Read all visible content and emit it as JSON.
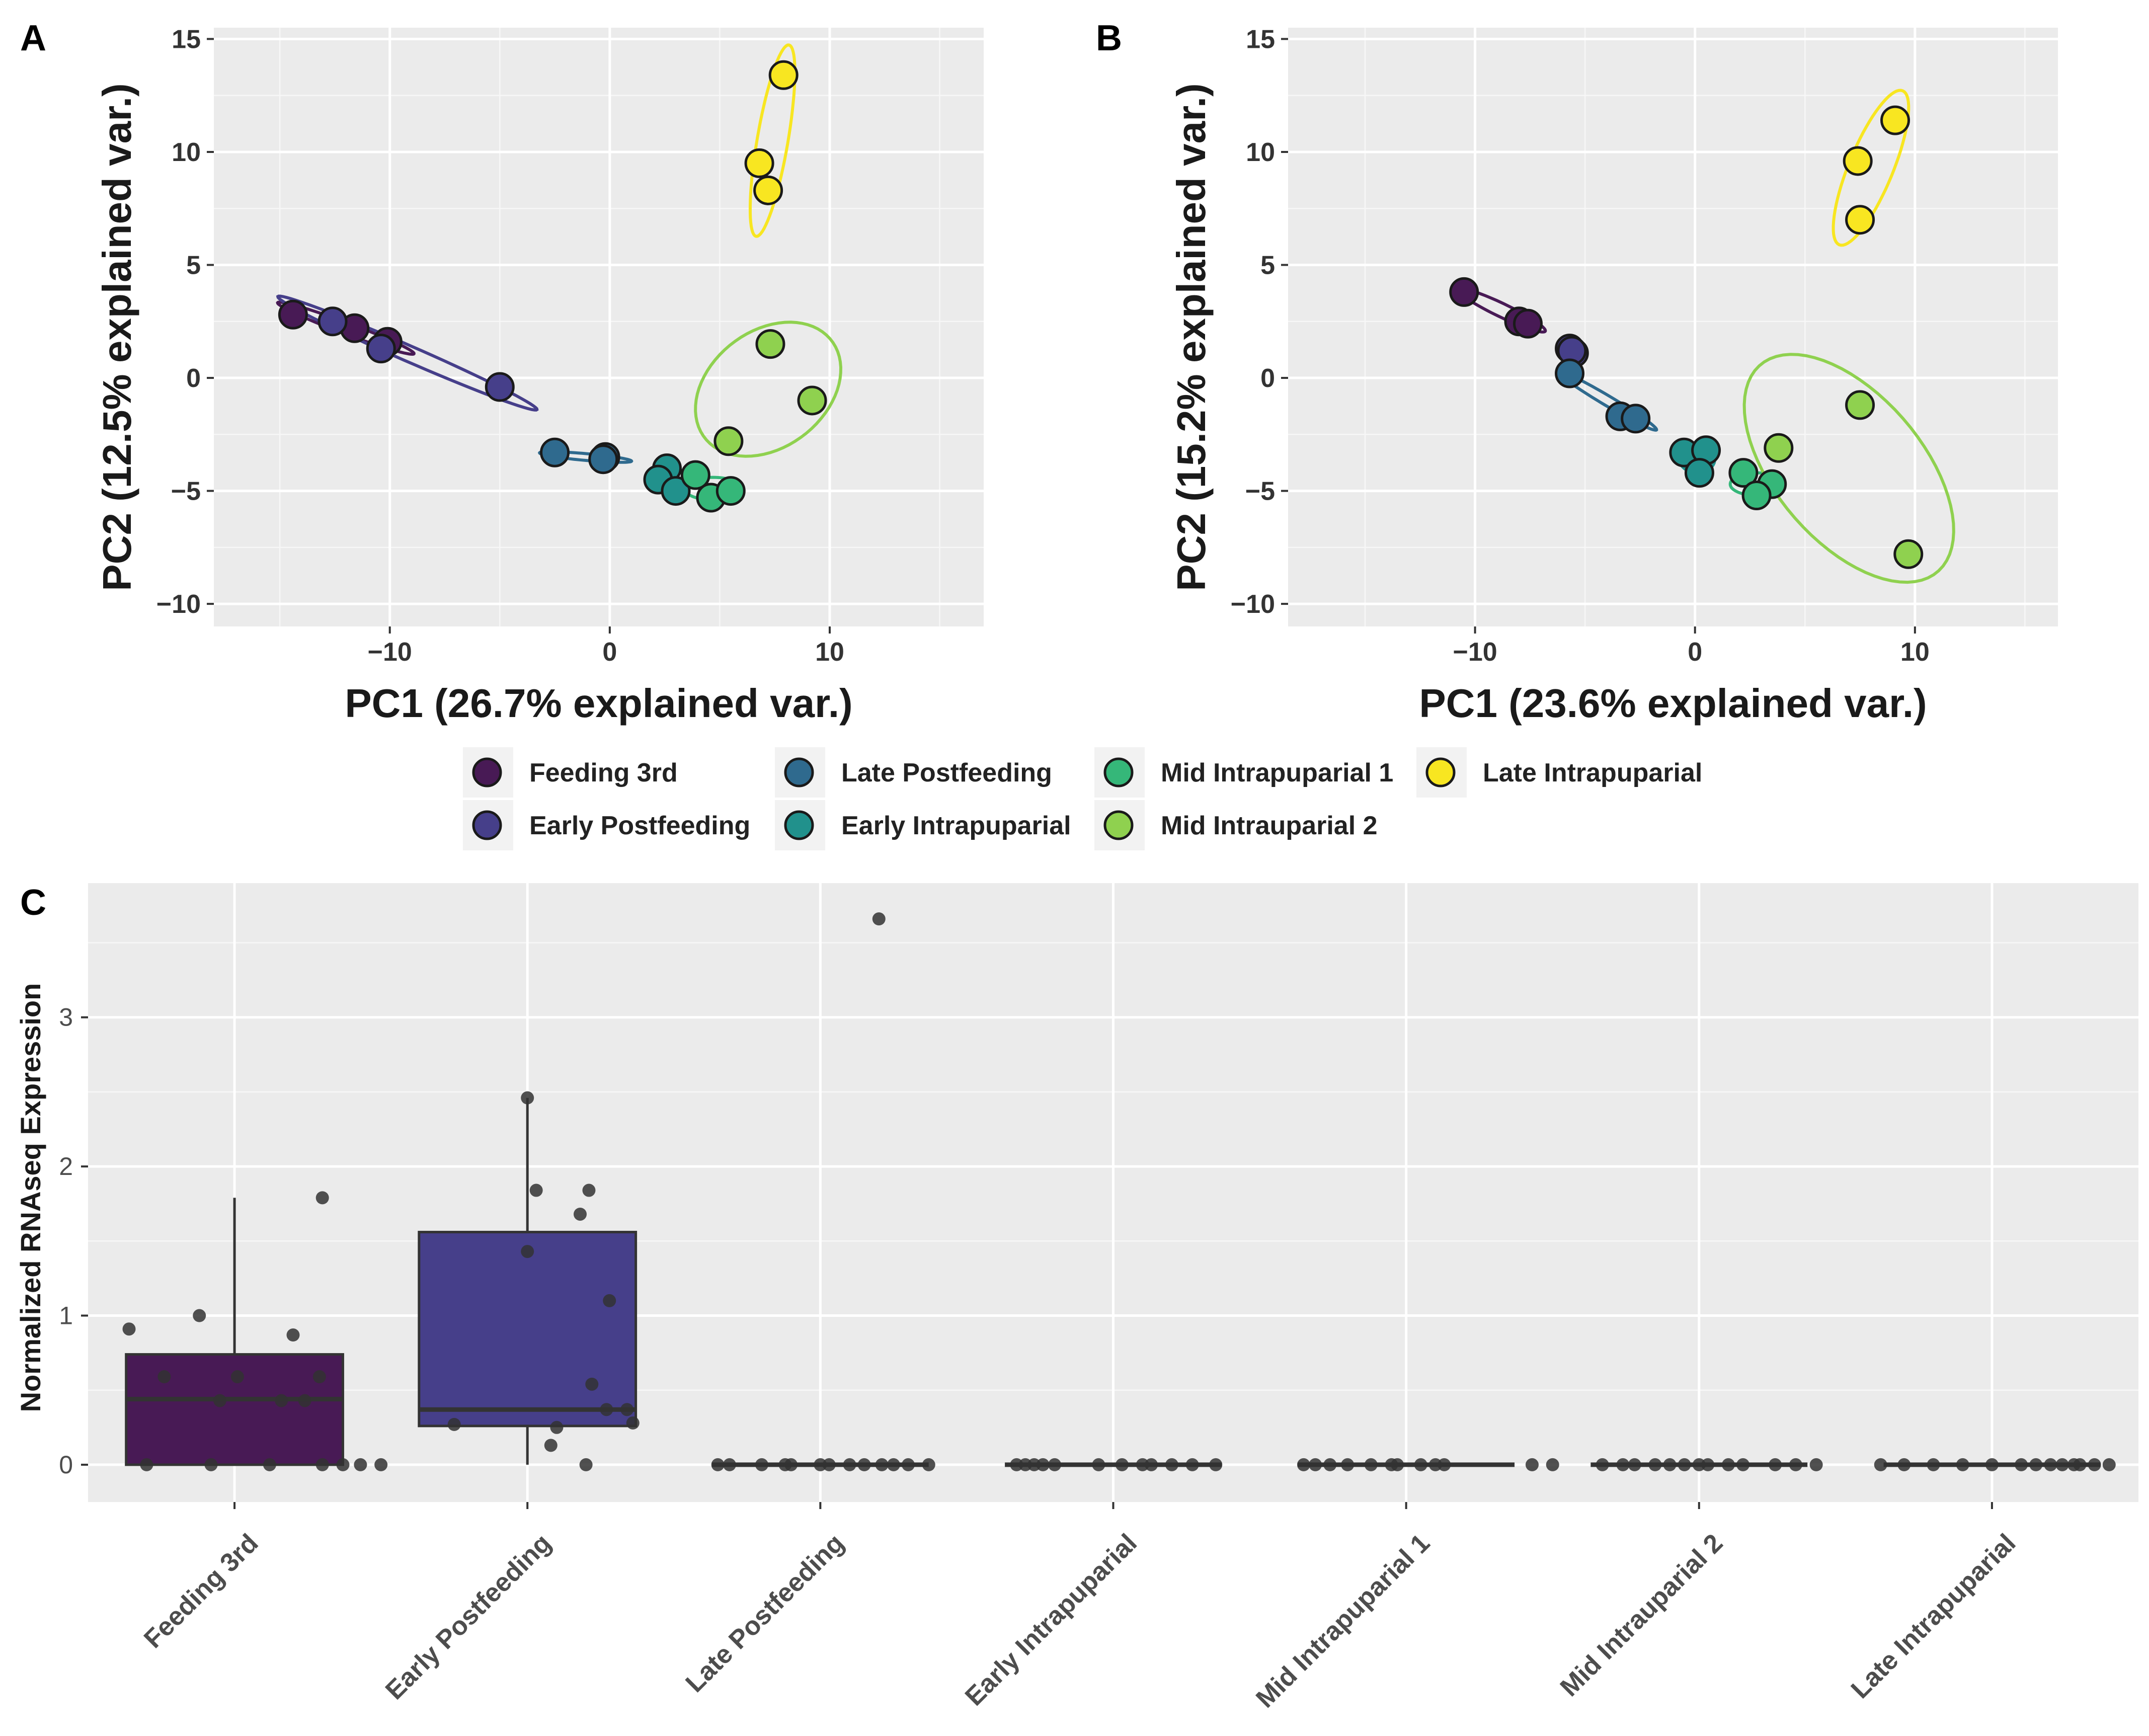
{
  "panels": {
    "a": "A",
    "b": "B",
    "c": "C"
  },
  "stage_colors": {
    "Feeding 3rd": "#481a55",
    "Early Postfeeding": "#463f8a",
    "Late Postfeeding": "#2f6a8e",
    "Early Intrapuparial": "#21918c",
    "Mid Intrapuparial 1": "#35b779",
    "Mid Intrauparial 2": "#8fd14f",
    "Late Intrapuparial": "#f8e621"
  },
  "legend": {
    "items": [
      "Feeding 3rd",
      "Early Postfeeding",
      "Late Postfeeding",
      "Early Intrapuparial",
      "Mid Intrapuparial 1",
      "Mid Intrauparial 2",
      "Late Intrapuparial"
    ]
  },
  "chart_data": [
    {
      "id": "A",
      "type": "scatter",
      "xlabel": "PC1 (26.7% explained var.)",
      "ylabel": "PC2 (12.5% explained var.)",
      "xlim": [
        -18,
        17
      ],
      "ylim": [
        -11,
        15.5
      ],
      "xticks": [
        -10,
        0,
        10
      ],
      "yticks": [
        -10,
        -5,
        0,
        5,
        10,
        15
      ],
      "xtick_labels": [
        "−10",
        "0",
        "10"
      ],
      "ytick_labels": [
        "−10",
        "−5",
        "0",
        "5",
        "10",
        "15"
      ],
      "points": [
        {
          "x": -14.4,
          "y": 2.8,
          "group": "Feeding 3rd"
        },
        {
          "x": -11.6,
          "y": 2.2,
          "group": "Feeding 3rd"
        },
        {
          "x": -10.1,
          "y": 1.6,
          "group": "Feeding 3rd"
        },
        {
          "x": -12.6,
          "y": 2.5,
          "group": "Early Postfeeding"
        },
        {
          "x": -10.4,
          "y": 1.3,
          "group": "Early Postfeeding"
        },
        {
          "x": -5.0,
          "y": -0.4,
          "group": "Early Postfeeding"
        },
        {
          "x": -2.5,
          "y": -3.3,
          "group": "Late Postfeeding"
        },
        {
          "x": -0.2,
          "y": -3.5,
          "group": "Late Postfeeding"
        },
        {
          "x": -0.3,
          "y": -3.6,
          "group": "Late Postfeeding"
        },
        {
          "x": 2.6,
          "y": -4.0,
          "group": "Early Intrapuparial"
        },
        {
          "x": 2.2,
          "y": -4.5,
          "group": "Early Intrapuparial"
        },
        {
          "x": 3.0,
          "y": -5.0,
          "group": "Early Intrapuparial"
        },
        {
          "x": 3.9,
          "y": -4.3,
          "group": "Mid Intrapuparial 1"
        },
        {
          "x": 4.6,
          "y": -5.3,
          "group": "Mid Intrapuparial 1"
        },
        {
          "x": 5.5,
          "y": -5.0,
          "group": "Mid Intrapuparial 1"
        },
        {
          "x": 7.3,
          "y": 1.5,
          "group": "Mid Intrauparial 2"
        },
        {
          "x": 9.2,
          "y": -1.0,
          "group": "Mid Intrauparial 2"
        },
        {
          "x": 5.4,
          "y": -2.8,
          "group": "Mid Intrauparial 2"
        },
        {
          "x": 7.9,
          "y": 13.4,
          "group": "Late Intrapuparial"
        },
        {
          "x": 6.8,
          "y": 9.5,
          "group": "Late Intrapuparial"
        },
        {
          "x": 7.2,
          "y": 8.3,
          "group": "Late Intrapuparial"
        }
      ],
      "ellipses": [
        {
          "group": "Feeding 3rd",
          "cx": -12.0,
          "cy": 2.2,
          "rx": 3.3,
          "ry": 0.25,
          "angle_deg": -20
        },
        {
          "group": "Early Postfeeding",
          "cx": -9.2,
          "cy": 1.1,
          "rx": 6.4,
          "ry": 0.35,
          "angle_deg": -23
        },
        {
          "group": "Late Postfeeding",
          "cx": -1.1,
          "cy": -3.5,
          "rx": 2.1,
          "ry": 0.15,
          "angle_deg": -5
        },
        {
          "group": "Early Intrapuparial",
          "cx": 2.6,
          "cy": -4.5,
          "rx": 0.9,
          "ry": 0.6,
          "angle_deg": 0
        },
        {
          "group": "Mid Intrapuparial 1",
          "cx": 4.7,
          "cy": -4.9,
          "rx": 1.3,
          "ry": 0.5,
          "angle_deg": 0
        },
        {
          "group": "Mid Intrauparial 2",
          "cx": 7.2,
          "cy": -0.5,
          "rx": 3.6,
          "ry": 2.6,
          "angle_deg": 35
        },
        {
          "group": "Late Intrapuparial",
          "cx": 7.4,
          "cy": 10.5,
          "rx": 4.3,
          "ry": 0.7,
          "angle_deg": 80
        }
      ]
    },
    {
      "id": "B",
      "type": "scatter",
      "xlabel": "PC1 (23.6% explained var.)",
      "ylabel": "PC2 (15.2% explained var.)",
      "xlim": [
        -18.5,
        16.5
      ],
      "ylim": [
        -11,
        15.5
      ],
      "xticks": [
        -10,
        0,
        10
      ],
      "yticks": [
        -10,
        -5,
        0,
        5,
        10,
        15
      ],
      "xtick_labels": [
        "−10",
        "0",
        "10"
      ],
      "ytick_labels": [
        "−10",
        "−5",
        "0",
        "5",
        "10",
        "15"
      ],
      "points": [
        {
          "x": -10.5,
          "y": 3.8,
          "group": "Feeding 3rd"
        },
        {
          "x": -8.0,
          "y": 2.5,
          "group": "Feeding 3rd"
        },
        {
          "x": -7.6,
          "y": 2.4,
          "group": "Feeding 3rd"
        },
        {
          "x": -5.7,
          "y": 1.3,
          "group": "Early Postfeeding"
        },
        {
          "x": -5.5,
          "y": 1.1,
          "group": "Early Postfeeding"
        },
        {
          "x": -5.6,
          "y": 1.2,
          "group": "Early Postfeeding"
        },
        {
          "x": -5.7,
          "y": 0.2,
          "group": "Late Postfeeding"
        },
        {
          "x": -3.4,
          "y": -1.7,
          "group": "Late Postfeeding"
        },
        {
          "x": -2.7,
          "y": -1.8,
          "group": "Late Postfeeding"
        },
        {
          "x": -0.5,
          "y": -3.3,
          "group": "Early Intrapuparial"
        },
        {
          "x": 0.5,
          "y": -3.2,
          "group": "Early Intrapuparial"
        },
        {
          "x": 0.2,
          "y": -4.2,
          "group": "Early Intrapuparial"
        },
        {
          "x": 2.2,
          "y": -4.2,
          "group": "Mid Intrapuparial 1"
        },
        {
          "x": 3.5,
          "y": -4.7,
          "group": "Mid Intrapuparial 1"
        },
        {
          "x": 2.8,
          "y": -5.2,
          "group": "Mid Intrapuparial 1"
        },
        {
          "x": 7.5,
          "y": -1.2,
          "group": "Mid Intrauparial 2"
        },
        {
          "x": 3.8,
          "y": -3.1,
          "group": "Mid Intrauparial 2"
        },
        {
          "x": 9.7,
          "y": -7.8,
          "group": "Mid Intrauparial 2"
        },
        {
          "x": 9.1,
          "y": 11.4,
          "group": "Late Intrapuparial"
        },
        {
          "x": 7.4,
          "y": 9.6,
          "group": "Late Intrapuparial"
        },
        {
          "x": 7.5,
          "y": 7.0,
          "group": "Late Intrapuparial"
        }
      ],
      "ellipses": [
        {
          "group": "Feeding 3rd",
          "cx": -8.8,
          "cy": 3.0,
          "rx": 2.2,
          "ry": 0.3,
          "angle_deg": -25
        },
        {
          "group": "Early Postfeeding",
          "cx": -5.6,
          "cy": 1.2,
          "rx": 0.5,
          "ry": 0.3,
          "angle_deg": 0
        },
        {
          "group": "Late Postfeeding",
          "cx": -4.0,
          "cy": -1.0,
          "rx": 2.6,
          "ry": 0.22,
          "angle_deg": -30
        },
        {
          "group": "Early Intrapuparial",
          "cx": 0.1,
          "cy": -3.6,
          "rx": 0.8,
          "ry": 0.6,
          "angle_deg": 0
        },
        {
          "group": "Mid Intrapuparial 1",
          "cx": 2.8,
          "cy": -4.7,
          "rx": 1.2,
          "ry": 0.5,
          "angle_deg": 0
        },
        {
          "group": "Mid Intrauparial 2",
          "cx": 7.0,
          "cy": -4.0,
          "rx": 6.1,
          "ry": 3.3,
          "angle_deg": -48
        },
        {
          "group": "Late Intrapuparial",
          "cx": 8.0,
          "cy": 9.3,
          "rx": 3.7,
          "ry": 1.0,
          "angle_deg": 67
        }
      ]
    },
    {
      "id": "C",
      "type": "box",
      "xlabel": "",
      "ylabel": "Normalized RNAseq Expression",
      "ylim": [
        -0.25,
        3.9
      ],
      "yticks": [
        0,
        1,
        2,
        3
      ],
      "ytick_labels": [
        "0",
        "1",
        "2",
        "3"
      ],
      "categories": [
        "Feeding 3rd",
        "Early Postfeeding",
        "Late Postfeeding",
        "Early Intrapuparial",
        "Mid Intrapuparial 1",
        "Mid Intrauparial 2",
        "Late Intrapuparial"
      ],
      "boxes": [
        {
          "q1": 0.0,
          "median": 0.44,
          "q3": 0.74,
          "whisker_low": 0.0,
          "whisker_high": 1.79
        },
        {
          "q1": 0.26,
          "median": 0.37,
          "q3": 1.56,
          "whisker_low": 0.0,
          "whisker_high": 2.46
        },
        {
          "q1": 0.0,
          "median": 0.0,
          "q3": 0.0,
          "whisker_low": 0.0,
          "whisker_high": 0.0
        },
        {
          "q1": 0.0,
          "median": 0.0,
          "q3": 0.0,
          "whisker_low": 0.0,
          "whisker_high": 0.0
        },
        {
          "q1": 0.0,
          "median": 0.0,
          "q3": 0.0,
          "whisker_low": 0.0,
          "whisker_high": 0.0
        },
        {
          "q1": 0.0,
          "median": 0.0,
          "q3": 0.0,
          "whisker_low": 0.0,
          "whisker_high": 0.0
        },
        {
          "q1": 0.0,
          "median": 0.0,
          "q3": 0.0,
          "whisker_low": 0.0,
          "whisker_high": 0.0
        }
      ],
      "jitter": [
        [
          [
            -0.36,
            0.91
          ],
          [
            -0.24,
            0.59
          ],
          [
            -0.3,
            0.0
          ],
          [
            -0.12,
            1.0
          ],
          [
            -0.05,
            0.43
          ],
          [
            0.01,
            0.59
          ],
          [
            -0.08,
            0.0
          ],
          [
            0.12,
            0.0
          ],
          [
            0.16,
            0.43
          ],
          [
            0.24,
            0.43
          ],
          [
            0.29,
            0.59
          ],
          [
            0.3,
            0.0
          ],
          [
            0.37,
            0.0
          ],
          [
            0.43,
            0.0
          ],
          [
            0.5,
            0.0
          ],
          [
            0.2,
            0.87
          ],
          [
            0.3,
            1.79
          ]
        ],
        [
          [
            -0.25,
            0.27
          ],
          [
            0.0,
            2.46
          ],
          [
            0.0,
            1.43
          ],
          [
            0.03,
            1.84
          ],
          [
            0.1,
            0.25
          ],
          [
            0.08,
            0.13
          ],
          [
            0.18,
            1.68
          ],
          [
            0.21,
            1.84
          ],
          [
            0.2,
            0.0
          ],
          [
            0.22,
            0.54
          ],
          [
            0.27,
            0.37
          ],
          [
            0.28,
            1.1
          ],
          [
            0.34,
            0.37
          ],
          [
            0.36,
            0.28
          ]
        ],
        [
          [
            -0.35,
            0.0
          ],
          [
            -0.31,
            0.0
          ],
          [
            -0.2,
            0.0
          ],
          [
            -0.12,
            0.0
          ],
          [
            -0.1,
            0.0
          ],
          [
            0.0,
            0.0
          ],
          [
            0.03,
            0.0
          ],
          [
            0.1,
            0.0
          ],
          [
            0.15,
            0.0
          ],
          [
            0.21,
            0.0
          ],
          [
            0.25,
            0.0
          ],
          [
            0.3,
            0.0
          ],
          [
            0.37,
            0.0
          ],
          [
            0.2,
            3.66
          ]
        ],
        [
          [
            -0.33,
            0.0
          ],
          [
            -0.3,
            0.0
          ],
          [
            -0.27,
            0.0
          ],
          [
            -0.24,
            0.0
          ],
          [
            -0.2,
            0.0
          ],
          [
            -0.05,
            0.0
          ],
          [
            0.03,
            0.0
          ],
          [
            0.1,
            0.0
          ],
          [
            0.13,
            0.0
          ],
          [
            0.2,
            0.0
          ],
          [
            0.27,
            0.0
          ],
          [
            0.35,
            0.0
          ]
        ],
        [
          [
            -0.35,
            0.0
          ],
          [
            -0.31,
            0.0
          ],
          [
            -0.26,
            0.0
          ],
          [
            -0.2,
            0.0
          ],
          [
            -0.12,
            0.0
          ],
          [
            -0.05,
            0.0
          ],
          [
            -0.03,
            0.0
          ],
          [
            0.05,
            0.0
          ],
          [
            0.1,
            0.0
          ],
          [
            0.13,
            0.0
          ],
          [
            0.43,
            0.0
          ],
          [
            0.5,
            0.0
          ]
        ],
        [
          [
            -0.33,
            0.0
          ],
          [
            -0.26,
            0.0
          ],
          [
            -0.22,
            0.0
          ],
          [
            -0.15,
            0.0
          ],
          [
            -0.1,
            0.0
          ],
          [
            -0.05,
            0.0
          ],
          [
            0.0,
            0.0
          ],
          [
            0.03,
            0.0
          ],
          [
            0.1,
            0.0
          ],
          [
            0.15,
            0.0
          ],
          [
            0.26,
            0.0
          ],
          [
            0.33,
            0.0
          ],
          [
            0.4,
            0.0
          ]
        ],
        [
          [
            -0.38,
            0.0
          ],
          [
            -0.3,
            0.0
          ],
          [
            -0.2,
            0.0
          ],
          [
            -0.1,
            0.0
          ],
          [
            0.0,
            0.0
          ],
          [
            0.1,
            0.0
          ],
          [
            0.15,
            0.0
          ],
          [
            0.2,
            0.0
          ],
          [
            0.24,
            0.0
          ],
          [
            0.28,
            0.0
          ],
          [
            0.3,
            0.0
          ],
          [
            0.35,
            0.0
          ],
          [
            0.4,
            0.0
          ]
        ]
      ]
    }
  ]
}
